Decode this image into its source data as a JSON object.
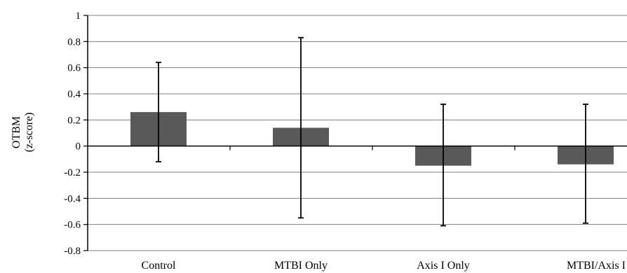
{
  "chart_data": {
    "type": "bar",
    "title": "",
    "xlabel": "",
    "ylabel": [
      "OTBM",
      "(z-score)"
    ],
    "categories": [
      "Control",
      "MTBI Only",
      "Axis I Only",
      "MTBI/Axis I"
    ],
    "values": [
      0.26,
      0.14,
      -0.15,
      -0.14
    ],
    "error_low": [
      -0.12,
      -0.55,
      -0.61,
      -0.59
    ],
    "error_high": [
      0.64,
      0.83,
      0.32,
      0.32
    ],
    "ylim": [
      -0.8,
      1
    ],
    "yticks": [
      1,
      0.8,
      0.6,
      0.4,
      0.2,
      0,
      -0.2,
      -0.4,
      -0.6,
      -0.8
    ],
    "ytick_labels": [
      "1",
      "0.8",
      "0.6",
      "0.4",
      "0.2",
      "0",
      "-0.2",
      "-0.4",
      "-0.6",
      "-0.8"
    ],
    "grid": true,
    "legend": "none",
    "colors": {
      "bar": "#595959",
      "grid": "#7f7f7f",
      "axis": "#000000",
      "error": "#000000"
    }
  }
}
